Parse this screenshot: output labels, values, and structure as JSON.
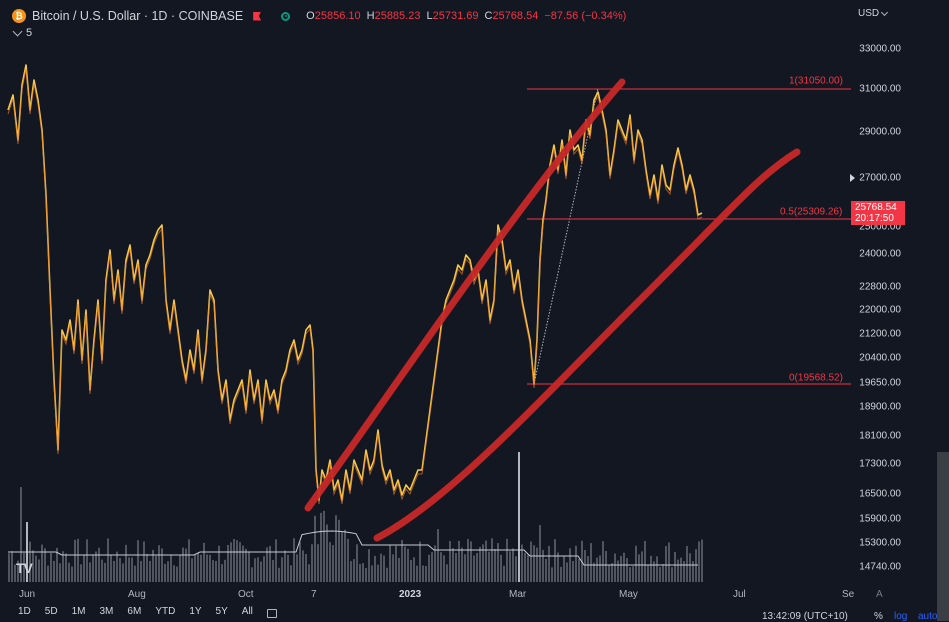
{
  "header": {
    "icon": "bitcoin-icon",
    "symbol_title": "Bitcoin / U.S. Dollar · 1D · COINBASE",
    "ohlc": {
      "o_label": "O",
      "o": "25856.10",
      "h_label": "H",
      "h": "25885.23",
      "l_label": "L",
      "l": "25731.69",
      "c_label": "C",
      "c": "25768.54",
      "change": "−87.56 (−0.34%)"
    },
    "indicator_count": "5"
  },
  "currency": "USD",
  "price_axis": [
    "33000.00",
    "31000.00",
    "29000.00",
    "27000.00",
    "25000.00",
    "24000.00",
    "22800.00",
    "22000.00",
    "21200.00",
    "20400.00",
    "19650.00",
    "18900.00",
    "18100.00",
    "17300.00",
    "16500.00",
    "15900.00",
    "15300.00",
    "14740.00"
  ],
  "current_price": {
    "price": "25768.54",
    "countdown": "20:17:50"
  },
  "fib": [
    {
      "label": "1(31050.00)",
      "price": 31050
    },
    {
      "label": "0.5(25309.26)",
      "price": 25309.26
    },
    {
      "label": "0(19568.52)",
      "price": 19568.52
    }
  ],
  "time_axis": [
    {
      "label": "Jun",
      "bold": false
    },
    {
      "label": "Aug",
      "bold": false
    },
    {
      "label": "Oct",
      "bold": false
    },
    {
      "label": "7",
      "bold": false
    },
    {
      "label": "2023",
      "bold": true
    },
    {
      "label": "Mar",
      "bold": false
    },
    {
      "label": "May",
      "bold": false
    },
    {
      "label": "Jul",
      "bold": false
    },
    {
      "label": "Se",
      "bold": false
    }
  ],
  "logo": "TV",
  "scale_button": "A",
  "timeframes": [
    "1D",
    "5D",
    "1M",
    "3M",
    "6M",
    "YTD",
    "1Y",
    "5Y",
    "All"
  ],
  "clock": "13:42:09 (UTC+10)",
  "scale_options": {
    "percent": "%",
    "log": "log",
    "auto": "auto"
  },
  "colors": {
    "background": "#131722",
    "candle_up": "#f7c948",
    "candle_down": "#f0a236",
    "fib_line": "#f23645",
    "trend_line": "#c62828",
    "volume": "#5d606b"
  }
}
